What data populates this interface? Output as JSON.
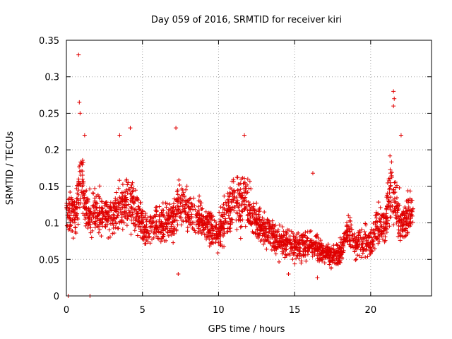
{
  "chart_data": {
    "type": "scatter",
    "title": "Day 059 of 2016, SRMTID for receiver kiri",
    "xlabel": "GPS time / hours",
    "ylabel": "SRMTID / TECUs",
    "xlim": [
      0,
      24
    ],
    "ylim": [
      0,
      0.35
    ],
    "xticks": [
      0,
      5,
      10,
      15,
      20
    ],
    "xtick_labels": [
      "0",
      "5",
      "10",
      "15",
      "20"
    ],
    "yticks": [
      0,
      0.05,
      0.1,
      0.15,
      0.2,
      0.25,
      0.3,
      0.35
    ],
    "ytick_labels": [
      "0",
      "0.05",
      "0.1",
      "0.15",
      "0.2",
      "0.25",
      "0.3",
      "0.35"
    ],
    "grid": true,
    "marker": "plus",
    "marker_color": "#e00000",
    "series": [
      {
        "name": "SRMTID",
        "profile_hours": [
          0.0,
          0.3,
          0.6,
          0.8,
          1.0,
          1.2,
          1.5,
          2.0,
          3.0,
          4.0,
          4.5,
          5.0,
          6.0,
          7.0,
          7.5,
          8.0,
          9.0,
          10.0,
          10.5,
          11.0,
          11.5,
          12.0,
          12.5,
          13.0,
          14.0,
          15.0,
          16.0,
          17.0,
          17.5,
          18.0,
          18.5,
          19.0,
          20.0,
          20.5,
          21.0,
          21.3,
          21.6,
          22.0,
          22.5,
          22.8
        ],
        "profile_center": [
          0.11,
          0.12,
          0.11,
          0.15,
          0.17,
          0.13,
          0.11,
          0.115,
          0.11,
          0.13,
          0.12,
          0.095,
          0.095,
          0.105,
          0.125,
          0.115,
          0.1,
          0.085,
          0.11,
          0.13,
          0.13,
          0.12,
          0.1,
          0.09,
          0.075,
          0.07,
          0.07,
          0.06,
          0.055,
          0.06,
          0.09,
          0.07,
          0.075,
          0.095,
          0.1,
          0.15,
          0.12,
          0.1,
          0.11,
          0.12
        ],
        "profile_spread": [
          0.035,
          0.035,
          0.035,
          0.06,
          0.06,
          0.04,
          0.035,
          0.035,
          0.035,
          0.04,
          0.04,
          0.03,
          0.03,
          0.035,
          0.04,
          0.035,
          0.03,
          0.03,
          0.04,
          0.05,
          0.05,
          0.04,
          0.03,
          0.03,
          0.025,
          0.025,
          0.025,
          0.02,
          0.02,
          0.02,
          0.03,
          0.025,
          0.025,
          0.035,
          0.04,
          0.06,
          0.05,
          0.035,
          0.035,
          0.035
        ],
        "outliers": [
          {
            "x": 0.12,
            "y": 0.0
          },
          {
            "x": 1.55,
            "y": 0.0
          },
          {
            "x": 0.8,
            "y": 0.33
          },
          {
            "x": 0.85,
            "y": 0.265
          },
          {
            "x": 0.9,
            "y": 0.25
          },
          {
            "x": 1.2,
            "y": 0.22
          },
          {
            "x": 3.5,
            "y": 0.22
          },
          {
            "x": 4.2,
            "y": 0.23
          },
          {
            "x": 7.2,
            "y": 0.23
          },
          {
            "x": 11.7,
            "y": 0.22
          },
          {
            "x": 16.2,
            "y": 0.168
          },
          {
            "x": 16.5,
            "y": 0.025
          },
          {
            "x": 21.5,
            "y": 0.28
          },
          {
            "x": 21.55,
            "y": 0.27
          },
          {
            "x": 21.5,
            "y": 0.26
          },
          {
            "x": 22.0,
            "y": 0.22
          },
          {
            "x": 7.35,
            "y": 0.03
          },
          {
            "x": 14.6,
            "y": 0.03
          }
        ]
      }
    ]
  }
}
